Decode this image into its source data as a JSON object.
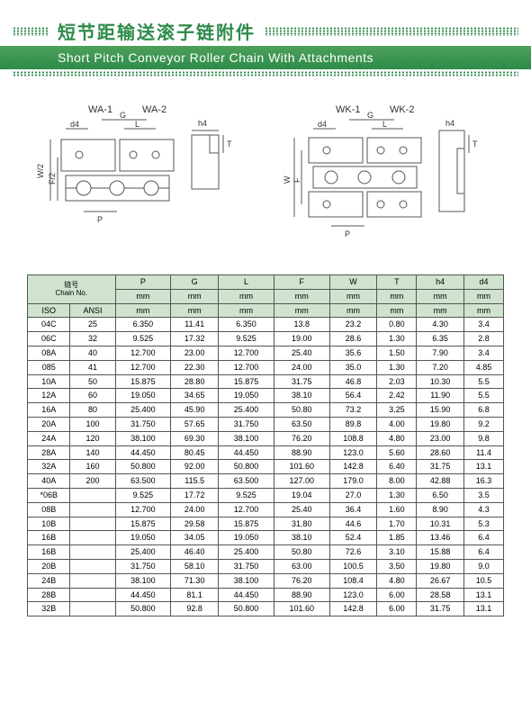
{
  "header": {
    "chinese_title": "短节距输送滚子链附件",
    "english_title": "Short Pitch Conveyor Roller Chain With Attachments"
  },
  "diagrams": {
    "left_labels": {
      "top1": "WA-1",
      "top2": "WA-2",
      "d4": "d4",
      "G": "G",
      "L": "L",
      "h4": "h4",
      "T": "T",
      "W2": "W/2",
      "F2": "F/2",
      "P": "P"
    },
    "right_labels": {
      "top1": "WK-1",
      "top2": "WK-2",
      "d4": "d4",
      "G": "G",
      "L": "L",
      "h4": "h4",
      "T": "T",
      "W": "W",
      "F": "F",
      "P": "P"
    }
  },
  "table": {
    "header_chain_cn": "链号",
    "header_chain_en": "Chain No.",
    "columns": [
      "P",
      "G",
      "L",
      "F",
      "W",
      "T",
      "h4",
      "d4"
    ],
    "unit": "mm",
    "sub_columns": [
      "ISO",
      "ANSI"
    ],
    "rows": [
      {
        "iso": "04C",
        "ansi": "25",
        "P": "6.350",
        "G": "11.41",
        "L": "6.350",
        "F": "13.8",
        "W": "23.2",
        "T": "0.80",
        "h4": "4.30",
        "d4": "3.4"
      },
      {
        "iso": "06C",
        "ansi": "32",
        "P": "9.525",
        "G": "17.32",
        "L": "9.525",
        "F": "19.00",
        "W": "28.6",
        "T": "1.30",
        "h4": "6.35",
        "d4": "2.8"
      },
      {
        "iso": "08A",
        "ansi": "40",
        "P": "12.700",
        "G": "23.00",
        "L": "12.700",
        "F": "25.40",
        "W": "35.6",
        "T": "1.50",
        "h4": "7.90",
        "d4": "3.4"
      },
      {
        "iso": "085",
        "ansi": "41",
        "P": "12.700",
        "G": "22.30",
        "L": "12.700",
        "F": "24.00",
        "W": "35.0",
        "T": "1.30",
        "h4": "7.20",
        "d4": "4.85"
      },
      {
        "iso": "10A",
        "ansi": "50",
        "P": "15.875",
        "G": "28.80",
        "L": "15.875",
        "F": "31.75",
        "W": "46.8",
        "T": "2.03",
        "h4": "10.30",
        "d4": "5.5"
      },
      {
        "iso": "12A",
        "ansi": "60",
        "P": "19.050",
        "G": "34.65",
        "L": "19.050",
        "F": "38.10",
        "W": "56.4",
        "T": "2.42",
        "h4": "11.90",
        "d4": "5.5"
      },
      {
        "iso": "16A",
        "ansi": "80",
        "P": "25.400",
        "G": "45.90",
        "L": "25.400",
        "F": "50.80",
        "W": "73.2",
        "T": "3.25",
        "h4": "15.90",
        "d4": "6.8"
      },
      {
        "iso": "20A",
        "ansi": "100",
        "P": "31.750",
        "G": "57.65",
        "L": "31.750",
        "F": "63.50",
        "W": "89.8",
        "T": "4.00",
        "h4": "19.80",
        "d4": "9.2"
      },
      {
        "iso": "24A",
        "ansi": "120",
        "P": "38.100",
        "G": "69.30",
        "L": "38.100",
        "F": "76.20",
        "W": "108.8",
        "T": "4.80",
        "h4": "23.00",
        "d4": "9.8"
      },
      {
        "iso": "28A",
        "ansi": "140",
        "P": "44.450",
        "G": "80.45",
        "L": "44.450",
        "F": "88.90",
        "W": "123.0",
        "T": "5.60",
        "h4": "28.60",
        "d4": "11.4"
      },
      {
        "iso": "32A",
        "ansi": "160",
        "P": "50.800",
        "G": "92.00",
        "L": "50.800",
        "F": "101.60",
        "W": "142.8",
        "T": "6.40",
        "h4": "31.75",
        "d4": "13.1"
      },
      {
        "iso": "40A",
        "ansi": "200",
        "P": "63.500",
        "G": "115.5",
        "L": "63.500",
        "F": "127.00",
        "W": "179.0",
        "T": "8.00",
        "h4": "42.88",
        "d4": "16.3"
      },
      {
        "iso": "*06B",
        "ansi": "",
        "P": "9.525",
        "G": "17.72",
        "L": "9.525",
        "F": "19.04",
        "W": "27.0",
        "T": "1.30",
        "h4": "6.50",
        "d4": "3.5"
      },
      {
        "iso": "08B",
        "ansi": "",
        "P": "12.700",
        "G": "24.00",
        "L": "12.700",
        "F": "25.40",
        "W": "36.4",
        "T": "1.60",
        "h4": "8.90",
        "d4": "4.3"
      },
      {
        "iso": "10B",
        "ansi": "",
        "P": "15.875",
        "G": "29.58",
        "L": "15.875",
        "F": "31.80",
        "W": "44.6",
        "T": "1.70",
        "h4": "10.31",
        "d4": "5.3"
      },
      {
        "iso": "16B",
        "ansi": "",
        "P": "19.050",
        "G": "34.05",
        "L": "19.050",
        "F": "38.10",
        "W": "52.4",
        "T": "1.85",
        "h4": "13.46",
        "d4": "6.4"
      },
      {
        "iso": "16B",
        "ansi": "",
        "P": "25.400",
        "G": "46.40",
        "L": "25.400",
        "F": "50.80",
        "W": "72.6",
        "T": "3.10",
        "h4": "15.88",
        "d4": "6.4"
      },
      {
        "iso": "20B",
        "ansi": "",
        "P": "31.750",
        "G": "58.10",
        "L": "31.750",
        "F": "63.00",
        "W": "100.5",
        "T": "3.50",
        "h4": "19.80",
        "d4": "9.0"
      },
      {
        "iso": "24B",
        "ansi": "",
        "P": "38.100",
        "G": "71.30",
        "L": "38.100",
        "F": "76.20",
        "W": "108.4",
        "T": "4.80",
        "h4": "26.67",
        "d4": "10.5"
      },
      {
        "iso": "28B",
        "ansi": "",
        "P": "44.450",
        "G": "81.1",
        "L": "44.450",
        "F": "88.90",
        "W": "123.0",
        "T": "6.00",
        "h4": "28.58",
        "d4": "13.1"
      },
      {
        "iso": "32B",
        "ansi": "",
        "P": "50.800",
        "G": "92.8",
        "L": "50.800",
        "F": "101.60",
        "W": "142.8",
        "T": "6.00",
        "h4": "31.75",
        "d4": "13.1"
      }
    ]
  },
  "colors": {
    "green": "#2e8b4a",
    "header_bg": "#cfe3cf",
    "border": "#555555"
  }
}
